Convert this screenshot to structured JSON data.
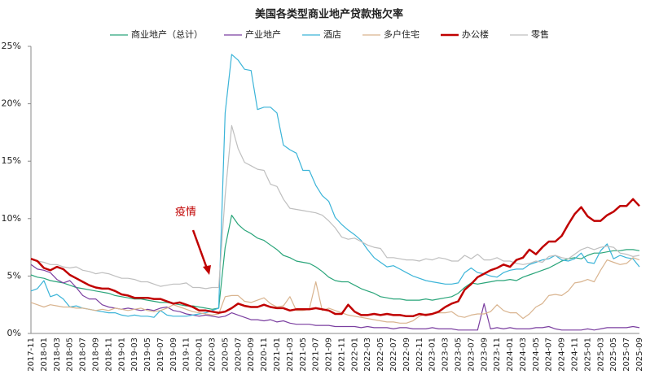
{
  "chart_data": {
    "type": "line",
    "title": "美国各类型商业地产贷款拖欠率",
    "annotation": "疫情",
    "legend": "top",
    "categories": [
      "2017-11",
      null,
      "2018-01",
      null,
      "2018-03",
      null,
      "2018-05",
      null,
      "2018-07",
      null,
      "2018-09",
      null,
      "2018-11",
      null,
      "2019-01",
      null,
      "2019-03",
      null,
      "2019-05",
      null,
      "2019-07",
      null,
      "2019-09",
      null,
      "2019-11",
      null,
      "2020-01",
      null,
      "2020-03",
      null,
      "2020-05",
      null,
      "2020-07",
      null,
      "2020-09",
      null,
      "2020-11",
      null,
      "2021-01",
      null,
      "2021-03",
      null,
      "2021-05",
      null,
      "2021-07",
      null,
      "2021-09",
      null,
      "2021-11",
      null,
      "2022-01",
      null,
      "2022-03",
      null,
      "2022-05",
      null,
      "2022-07",
      null,
      "2022-09",
      null,
      "2022-11",
      null,
      "2023-01",
      null,
      "2023-03",
      null,
      "2023-05",
      null,
      "2023-07",
      null,
      "2023-09",
      null,
      "2023-11",
      null,
      "2024-01",
      null,
      "2024-03",
      null,
      "2024-05",
      null,
      "2024-07",
      null,
      "2024-09",
      null,
      "2024-11",
      null,
      "2025-01",
      null,
      "2025-03",
      null,
      "2025-05",
      null,
      "2025-07",
      null,
      "2025-09"
    ],
    "ylim": [
      0,
      25
    ],
    "yticks": [
      {
        "value": 0,
        "label": "0%"
      },
      {
        "value": 5,
        "label": "5%"
      },
      {
        "value": 10,
        "label": "10%"
      },
      {
        "value": 15,
        "label": "15%"
      },
      {
        "value": 20,
        "label": "20%"
      },
      {
        "value": 25,
        "label": "25%"
      }
    ],
    "series": [
      {
        "name": "商业地产（总计）",
        "color": "#2aa57a",
        "linewidth": 1.2,
        "values": [
          5.1,
          4.9,
          4.8,
          4.6,
          4.5,
          4.4,
          4.2,
          4.0,
          3.9,
          3.8,
          3.7,
          3.6,
          3.5,
          3.3,
          3.2,
          3.1,
          3.0,
          3.0,
          2.9,
          2.8,
          2.7,
          2.7,
          2.6,
          2.5,
          2.4,
          2.4,
          2.3,
          2.2,
          2.1,
          2.2,
          7.5,
          10.3,
          9.5,
          9.0,
          8.7,
          8.3,
          8.1,
          7.7,
          7.3,
          6.8,
          6.6,
          6.3,
          6.2,
          6.1,
          5.8,
          5.4,
          4.9,
          4.6,
          4.5,
          4.5,
          4.2,
          3.9,
          3.7,
          3.5,
          3.2,
          3.1,
          3.0,
          3.0,
          2.9,
          2.9,
          2.9,
          3.0,
          2.9,
          3.0,
          3.1,
          3.2,
          3.5,
          4.0,
          4.4,
          4.3,
          4.4,
          4.5,
          4.6,
          4.6,
          4.7,
          4.6,
          4.9,
          5.1,
          5.3,
          5.5,
          5.7,
          6.0,
          6.3,
          6.5,
          6.6,
          6.5,
          6.8,
          7.0,
          7.0,
          7.1,
          7.2,
          7.2,
          7.3,
          7.3,
          7.2
        ]
      },
      {
        "name": "产业地产",
        "color": "#7b3fa0",
        "linewidth": 1.2,
        "values": [
          6.0,
          5.6,
          5.5,
          5.3,
          4.7,
          4.4,
          4.6,
          4.0,
          3.3,
          3.0,
          3.0,
          2.5,
          2.3,
          2.2,
          2.1,
          2.2,
          2.1,
          2.0,
          2.1,
          2.0,
          2.2,
          2.3,
          2.0,
          1.9,
          1.7,
          1.6,
          1.5,
          1.6,
          1.5,
          1.4,
          1.5,
          1.8,
          1.6,
          1.4,
          1.2,
          1.2,
          1.1,
          1.2,
          1.0,
          1.1,
          0.9,
          0.8,
          0.8,
          0.8,
          0.7,
          0.7,
          0.7,
          0.6,
          0.6,
          0.6,
          0.6,
          0.5,
          0.6,
          0.5,
          0.5,
          0.5,
          0.4,
          0.5,
          0.5,
          0.4,
          0.4,
          0.4,
          0.5,
          0.4,
          0.4,
          0.4,
          0.3,
          0.3,
          0.3,
          0.3,
          2.6,
          0.4,
          0.5,
          0.4,
          0.5,
          0.4,
          0.4,
          0.4,
          0.5,
          0.5,
          0.6,
          0.4,
          0.3,
          0.3,
          0.3,
          0.3,
          0.4,
          0.3,
          0.4,
          0.5,
          0.5,
          0.5,
          0.5,
          0.6,
          0.5
        ]
      },
      {
        "name": "酒店",
        "color": "#3bb4d8",
        "linewidth": 1.2,
        "values": [
          3.7,
          3.9,
          4.6,
          3.2,
          3.4,
          3.0,
          2.3,
          2.4,
          2.2,
          2.1,
          2.0,
          1.9,
          1.8,
          1.8,
          1.6,
          1.5,
          1.6,
          1.5,
          1.5,
          1.4,
          2.0,
          1.6,
          1.5,
          1.5,
          1.5,
          1.6,
          1.7,
          1.8,
          2.0,
          2.2,
          19.2,
          24.3,
          23.8,
          23.0,
          22.9,
          19.5,
          19.7,
          19.7,
          19.2,
          16.4,
          16.0,
          15.7,
          14.2,
          14.2,
          12.9,
          12.0,
          11.5,
          10.1,
          9.5,
          9.0,
          8.6,
          8.1,
          7.3,
          6.6,
          6.2,
          5.8,
          5.9,
          5.6,
          5.3,
          5.0,
          4.8,
          4.6,
          4.5,
          4.4,
          4.3,
          4.3,
          4.4,
          5.3,
          5.7,
          5.3,
          5.2,
          5.0,
          4.9,
          5.3,
          5.5,
          5.6,
          5.6,
          6.0,
          6.2,
          6.4,
          6.5,
          6.8,
          6.4,
          6.3,
          6.5,
          7.0,
          6.2,
          6.1,
          7.2,
          7.8,
          6.5,
          6.8,
          6.6,
          6.5,
          5.8
        ]
      },
      {
        "name": "多户住宅",
        "color": "#d9b48f",
        "linewidth": 1.2,
        "values": [
          2.7,
          2.5,
          2.3,
          2.5,
          2.4,
          2.3,
          2.3,
          2.2,
          2.2,
          2.1,
          2.0,
          2.1,
          2.0,
          2.2,
          2.1,
          2.0,
          2.1,
          2.2,
          2.0,
          1.9,
          2.0,
          2.2,
          2.5,
          2.3,
          2.1,
          1.9,
          1.8,
          1.7,
          1.6,
          1.7,
          3.2,
          3.3,
          3.3,
          2.8,
          2.7,
          2.9,
          3.1,
          2.6,
          2.3,
          2.4,
          3.2,
          2.0,
          2.0,
          2.1,
          4.5,
          2.0,
          2.2,
          2.0,
          1.8,
          1.6,
          1.5,
          1.4,
          1.3,
          1.2,
          1.1,
          1.0,
          1.0,
          0.9,
          0.9,
          1.1,
          1.5,
          1.7,
          1.7,
          1.8,
          1.8,
          1.9,
          1.5,
          1.4,
          1.6,
          1.7,
          1.7,
          1.9,
          2.5,
          2.0,
          1.8,
          1.8,
          1.3,
          1.7,
          2.3,
          2.6,
          3.3,
          3.4,
          3.3,
          3.7,
          4.4,
          4.5,
          4.7,
          4.5,
          5.5,
          6.4,
          6.2,
          6.0,
          6.1,
          6.6,
          6.4
        ]
      },
      {
        "name": "办公楼",
        "color": "#c00000",
        "linewidth": 2.5,
        "values": [
          6.5,
          6.3,
          5.7,
          5.5,
          5.8,
          5.6,
          5.1,
          4.8,
          4.5,
          4.2,
          4.0,
          3.9,
          3.9,
          3.7,
          3.4,
          3.3,
          3.1,
          3.1,
          3.1,
          3.0,
          3.0,
          2.8,
          2.6,
          2.7,
          2.5,
          2.3,
          2.0,
          2.0,
          1.9,
          1.8,
          1.9,
          2.2,
          2.6,
          2.4,
          2.3,
          2.3,
          2.5,
          2.3,
          2.2,
          2.2,
          2.0,
          2.1,
          2.1,
          2.1,
          2.2,
          2.1,
          2.0,
          1.7,
          1.7,
          2.5,
          1.9,
          1.6,
          1.6,
          1.7,
          1.6,
          1.7,
          1.6,
          1.6,
          1.5,
          1.5,
          1.7,
          1.6,
          1.7,
          1.9,
          2.3,
          2.6,
          2.8,
          3.8,
          4.3,
          4.9,
          5.2,
          5.5,
          5.7,
          6.0,
          5.8,
          6.4,
          6.6,
          7.3,
          6.9,
          7.5,
          8.0,
          8.0,
          8.5,
          9.5,
          10.4,
          11.0,
          10.2,
          9.8,
          9.8,
          10.3,
          10.6,
          11.1,
          11.1,
          11.7,
          11.1
        ]
      },
      {
        "name": "零售",
        "color": "#bfbfbf",
        "linewidth": 1.2,
        "values": [
          6.5,
          6.3,
          6.2,
          6.0,
          6.0,
          5.8,
          5.7,
          5.8,
          5.5,
          5.4,
          5.2,
          5.3,
          5.2,
          5.0,
          4.8,
          4.8,
          4.7,
          4.5,
          4.5,
          4.3,
          4.1,
          4.2,
          4.3,
          4.3,
          4.4,
          4.0,
          4.0,
          3.9,
          4.0,
          4.0,
          12.0,
          18.1,
          16.1,
          14.9,
          14.6,
          14.3,
          14.2,
          13.0,
          12.8,
          11.7,
          10.9,
          10.8,
          10.7,
          10.6,
          10.5,
          10.3,
          9.8,
          9.2,
          8.4,
          8.2,
          8.3,
          8.0,
          7.7,
          7.5,
          7.4,
          6.6,
          6.6,
          6.5,
          6.4,
          6.4,
          6.3,
          6.5,
          6.4,
          6.6,
          6.5,
          6.3,
          6.3,
          6.8,
          6.5,
          6.9,
          6.4,
          6.4,
          6.6,
          6.3,
          6.3,
          6.1,
          6.0,
          6.1,
          6.3,
          6.2,
          6.7,
          6.8,
          6.6,
          6.5,
          6.9,
          7.3,
          7.5,
          7.3,
          7.5,
          7.6,
          7.5,
          7.0,
          6.9,
          6.7,
          6.8
        ]
      }
    ]
  }
}
